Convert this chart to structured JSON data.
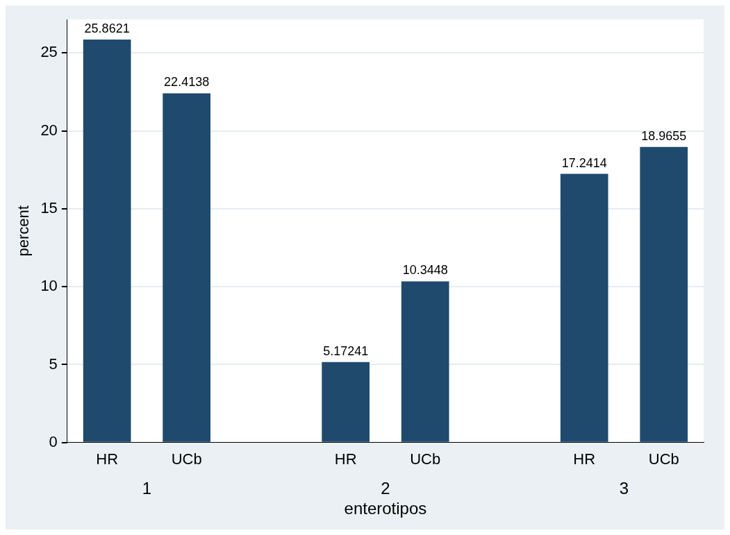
{
  "chart_data": {
    "type": "bar",
    "categories": [
      "HR",
      "UCb",
      "HR",
      "UCb",
      "HR",
      "UCb"
    ],
    "values": [
      25.8621,
      22.4138,
      5.17241,
      10.3448,
      17.2414,
      18.9655
    ],
    "color": "#1f4a6e",
    "ylabel": "percent",
    "xlabel": "enterotipos",
    "annotations": [
      "1",
      "2",
      "3"
    ],
    "ylim": [
      0,
      27.15
    ],
    "yticks": [
      0,
      5,
      10,
      15,
      20,
      25
    ],
    "grid": "y",
    "data_labels": true,
    "legend": false
  }
}
